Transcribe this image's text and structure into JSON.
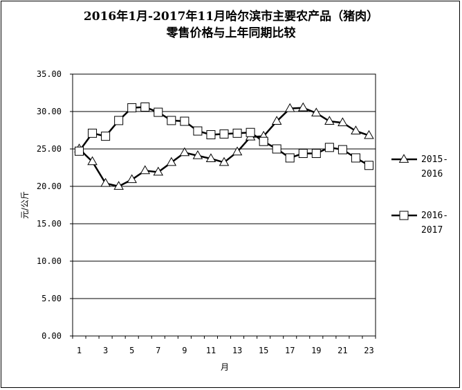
{
  "title_line1": "2016年1月-2017年11月哈尔滨市主要农产品（猪肉）",
  "title_line2": "零售价格与上年同期比较",
  "chart_data": {
    "type": "line",
    "xlabel": "月",
    "ylabel": "元/公斤",
    "ylim": [
      0,
      35
    ],
    "yticks": [
      "0.00",
      "5.00",
      "10.00",
      "15.00",
      "20.00",
      "25.00",
      "30.00",
      "35.00"
    ],
    "xticks": [
      "1",
      "3",
      "5",
      "7",
      "9",
      "11",
      "13",
      "15",
      "17",
      "19",
      "21",
      "23"
    ],
    "x": [
      1,
      2,
      3,
      4,
      5,
      6,
      7,
      8,
      9,
      10,
      11,
      12,
      13,
      14,
      15,
      16,
      17,
      18,
      19,
      20,
      21,
      22,
      23
    ],
    "grid": "horizontal",
    "legend_position": "right",
    "series": [
      {
        "name_line1": "2015-",
        "name_line2": "2016",
        "marker": "triangle",
        "values": [
          25.0,
          23.3,
          20.4,
          20.0,
          20.9,
          22.1,
          21.9,
          23.2,
          24.5,
          24.1,
          23.7,
          23.2,
          24.6,
          26.6,
          26.7,
          28.7,
          30.4,
          30.5,
          29.8,
          28.7,
          28.5,
          27.4,
          26.8
        ]
      },
      {
        "name_line1": "2016-",
        "name_line2": "2017",
        "marker": "square",
        "values": [
          24.7,
          27.1,
          26.7,
          28.8,
          30.5,
          30.6,
          29.9,
          28.8,
          28.7,
          27.4,
          26.9,
          27.0,
          27.1,
          27.2,
          26.0,
          25.0,
          23.8,
          24.4,
          24.4,
          25.2,
          24.9,
          23.8,
          22.8
        ]
      }
    ]
  }
}
